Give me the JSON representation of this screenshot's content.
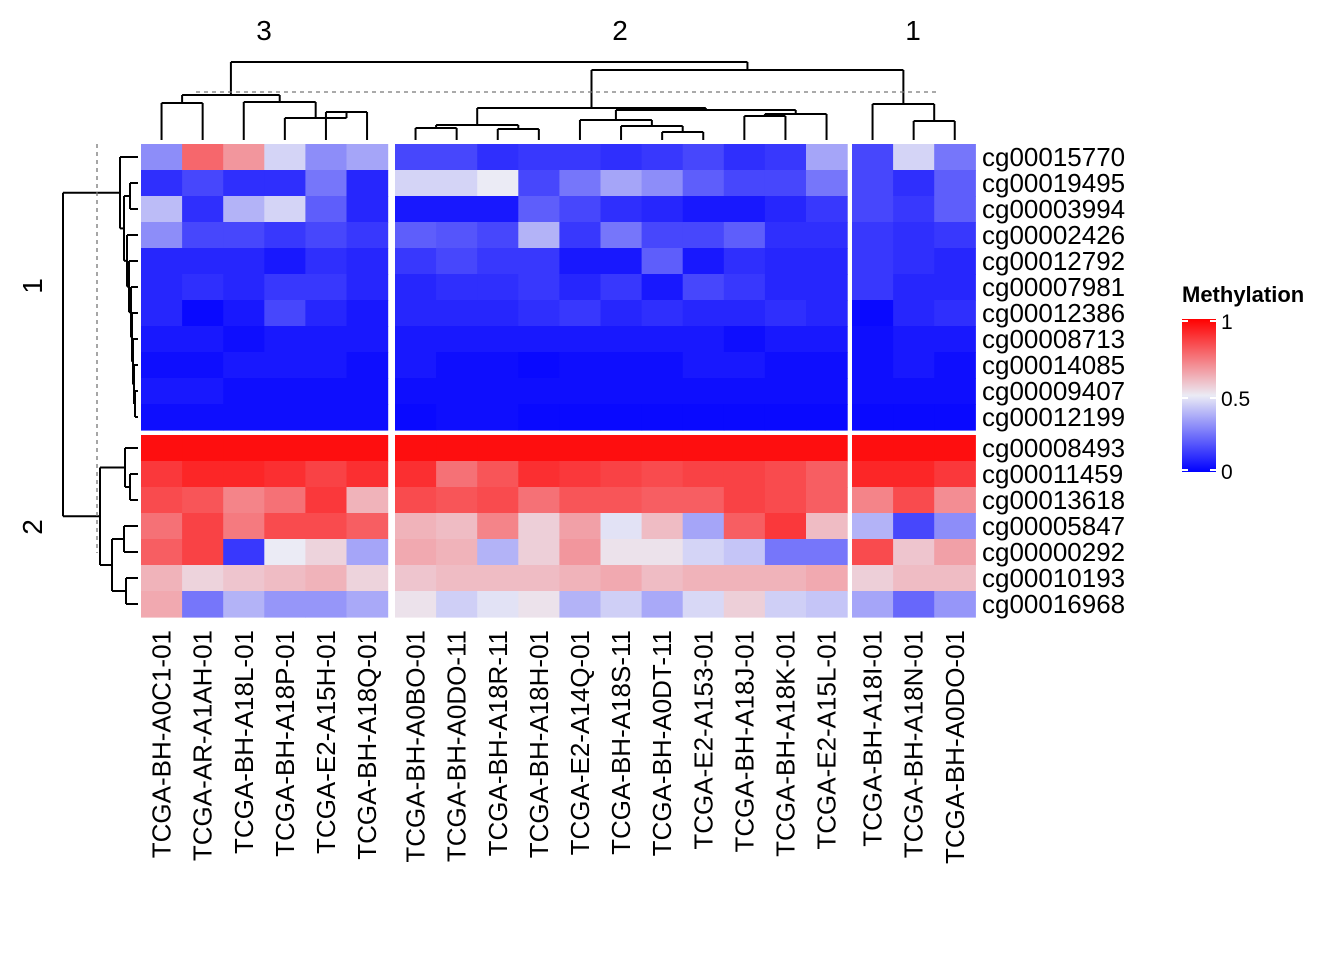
{
  "chart_data": {
    "type": "heatmap",
    "legend": {
      "title": "Methylation",
      "ticks": [
        "1",
        "0.5",
        "0"
      ],
      "range": [
        0,
        1
      ],
      "colors": {
        "low": "#0000ff",
        "mid": "#ebebf5",
        "high": "#ff0000"
      }
    },
    "column_split_labels": [
      "3",
      "2",
      "1"
    ],
    "row_split_labels": [
      "1",
      "2"
    ],
    "column_groups": [
      {
        "label": "3",
        "columns": [
          "TCGA-BH-A0C1-01",
          "TCGA-AR-A1AH-01",
          "TCGA-BH-A18L-01",
          "TCGA-BH-A18P-01",
          "TCGA-E2-A15H-01",
          "TCGA-BH-A18Q-01"
        ]
      },
      {
        "label": "2",
        "columns": [
          "TCGA-BH-A0BO-01",
          "TCGA-BH-A0DO-11",
          "TCGA-BH-A18R-11",
          "TCGA-BH-A18H-01",
          "TCGA-E2-A14Q-01",
          "TCGA-BH-A18S-11",
          "TCGA-BH-A0DT-11",
          "TCGA-E2-A153-01",
          "TCGA-BH-A18J-01",
          "TCGA-BH-A18K-01",
          "TCGA-E2-A15L-01"
        ]
      },
      {
        "label": "1",
        "columns": [
          "TCGA-BH-A18I-01",
          "TCGA-BH-A18N-01",
          "TCGA-BH-A0DO-01"
        ]
      }
    ],
    "row_groups": [
      {
        "label": "1",
        "rows": [
          {
            "name": "cg00015770",
            "values": [
              0.3,
              0.78,
              0.68,
              0.45,
              0.3,
              0.35,
              0.15,
              0.15,
              0.1,
              0.12,
              0.12,
              0.1,
              0.12,
              0.15,
              0.1,
              0.12,
              0.35,
              0.15,
              0.45,
              0.25
            ]
          },
          {
            "name": "cg00019495",
            "values": [
              0.1,
              0.15,
              0.1,
              0.1,
              0.25,
              0.08,
              0.45,
              0.45,
              0.5,
              0.15,
              0.25,
              0.35,
              0.3,
              0.2,
              0.15,
              0.15,
              0.25,
              0.15,
              0.1,
              0.2
            ]
          },
          {
            "name": "cg00003994",
            "values": [
              0.4,
              0.1,
              0.38,
              0.45,
              0.2,
              0.08,
              0.05,
              0.05,
              0.05,
              0.2,
              0.15,
              0.1,
              0.08,
              0.05,
              0.05,
              0.08,
              0.12,
              0.15,
              0.12,
              0.2
            ]
          },
          {
            "name": "cg00002426",
            "values": [
              0.3,
              0.15,
              0.15,
              0.12,
              0.15,
              0.12,
              0.2,
              0.18,
              0.15,
              0.38,
              0.12,
              0.25,
              0.15,
              0.15,
              0.2,
              0.1,
              0.1,
              0.12,
              0.1,
              0.12
            ]
          },
          {
            "name": "cg00012792",
            "values": [
              0.08,
              0.08,
              0.08,
              0.05,
              0.1,
              0.08,
              0.12,
              0.15,
              0.12,
              0.12,
              0.05,
              0.05,
              0.2,
              0.05,
              0.1,
              0.08,
              0.08,
              0.12,
              0.1,
              0.08
            ]
          },
          {
            "name": "cg00007981",
            "values": [
              0.08,
              0.1,
              0.08,
              0.12,
              0.12,
              0.08,
              0.08,
              0.1,
              0.1,
              0.12,
              0.08,
              0.12,
              0.05,
              0.15,
              0.12,
              0.08,
              0.08,
              0.12,
              0.08,
              0.08
            ]
          },
          {
            "name": "cg00012386",
            "values": [
              0.08,
              0.02,
              0.05,
              0.15,
              0.08,
              0.05,
              0.08,
              0.08,
              0.08,
              0.1,
              0.12,
              0.08,
              0.1,
              0.08,
              0.08,
              0.1,
              0.08,
              0.02,
              0.08,
              0.1
            ]
          },
          {
            "name": "cg00008713",
            "values": [
              0.05,
              0.05,
              0.03,
              0.05,
              0.05,
              0.05,
              0.05,
              0.05,
              0.05,
              0.05,
              0.05,
              0.05,
              0.05,
              0.05,
              0.03,
              0.05,
              0.05,
              0.03,
              0.05,
              0.05
            ]
          },
          {
            "name": "cg00014085",
            "values": [
              0.03,
              0.03,
              0.05,
              0.05,
              0.05,
              0.03,
              0.05,
              0.03,
              0.03,
              0.02,
              0.03,
              0.03,
              0.03,
              0.05,
              0.05,
              0.03,
              0.03,
              0.03,
              0.05,
              0.03
            ]
          },
          {
            "name": "cg00009407",
            "values": [
              0.05,
              0.05,
              0.03,
              0.03,
              0.03,
              0.03,
              0.03,
              0.03,
              0.03,
              0.03,
              0.03,
              0.03,
              0.03,
              0.03,
              0.03,
              0.03,
              0.03,
              0.03,
              0.03,
              0.03
            ]
          },
          {
            "name": "cg00012199",
            "values": [
              0.03,
              0.03,
              0.03,
              0.03,
              0.03,
              0.03,
              0.02,
              0.03,
              0.03,
              0.02,
              0.02,
              0.02,
              0.02,
              0.02,
              0.02,
              0.02,
              0.02,
              0.02,
              0.02,
              0.02
            ]
          }
        ]
      },
      {
        "label": "2",
        "rows": [
          {
            "name": "cg00008493",
            "values": [
              0.97,
              0.97,
              0.97,
              0.97,
              0.97,
              0.97,
              0.97,
              0.97,
              0.97,
              0.97,
              0.97,
              0.97,
              0.97,
              0.97,
              0.97,
              0.97,
              0.97,
              0.97,
              0.97,
              0.97
            ]
          },
          {
            "name": "cg00011459",
            "values": [
              0.88,
              0.92,
              0.92,
              0.9,
              0.86,
              0.9,
              0.9,
              0.76,
              0.82,
              0.9,
              0.88,
              0.86,
              0.84,
              0.86,
              0.86,
              0.84,
              0.8,
              0.92,
              0.92,
              0.88
            ]
          },
          {
            "name": "cg00013618",
            "values": [
              0.84,
              0.82,
              0.72,
              0.76,
              0.88,
              0.62,
              0.84,
              0.82,
              0.84,
              0.76,
              0.82,
              0.82,
              0.8,
              0.8,
              0.86,
              0.84,
              0.8,
              0.72,
              0.84,
              0.7
            ]
          },
          {
            "name": "cg00005847",
            "values": [
              0.76,
              0.86,
              0.74,
              0.84,
              0.84,
              0.8,
              0.62,
              0.6,
              0.72,
              0.56,
              0.66,
              0.48,
              0.6,
              0.35,
              0.8,
              0.88,
              0.6,
              0.38,
              0.15,
              0.3
            ]
          },
          {
            "name": "cg00000292",
            "values": [
              0.8,
              0.86,
              0.12,
              0.5,
              0.55,
              0.35,
              0.64,
              0.62,
              0.38,
              0.56,
              0.68,
              0.52,
              0.52,
              0.45,
              0.42,
              0.25,
              0.25,
              0.84,
              0.58,
              0.66
            ]
          },
          {
            "name": "cg00010193",
            "values": [
              0.62,
              0.55,
              0.58,
              0.6,
              0.62,
              0.55,
              0.58,
              0.6,
              0.6,
              0.6,
              0.62,
              0.64,
              0.6,
              0.62,
              0.62,
              0.62,
              0.64,
              0.56,
              0.6,
              0.6
            ]
          },
          {
            "name": "cg00016968",
            "values": [
              0.64,
              0.25,
              0.38,
              0.32,
              0.32,
              0.36,
              0.52,
              0.44,
              0.48,
              0.52,
              0.38,
              0.44,
              0.36,
              0.46,
              0.56,
              0.44,
              0.42,
              0.35,
              0.22,
              0.32
            ]
          }
        ]
      }
    ]
  }
}
